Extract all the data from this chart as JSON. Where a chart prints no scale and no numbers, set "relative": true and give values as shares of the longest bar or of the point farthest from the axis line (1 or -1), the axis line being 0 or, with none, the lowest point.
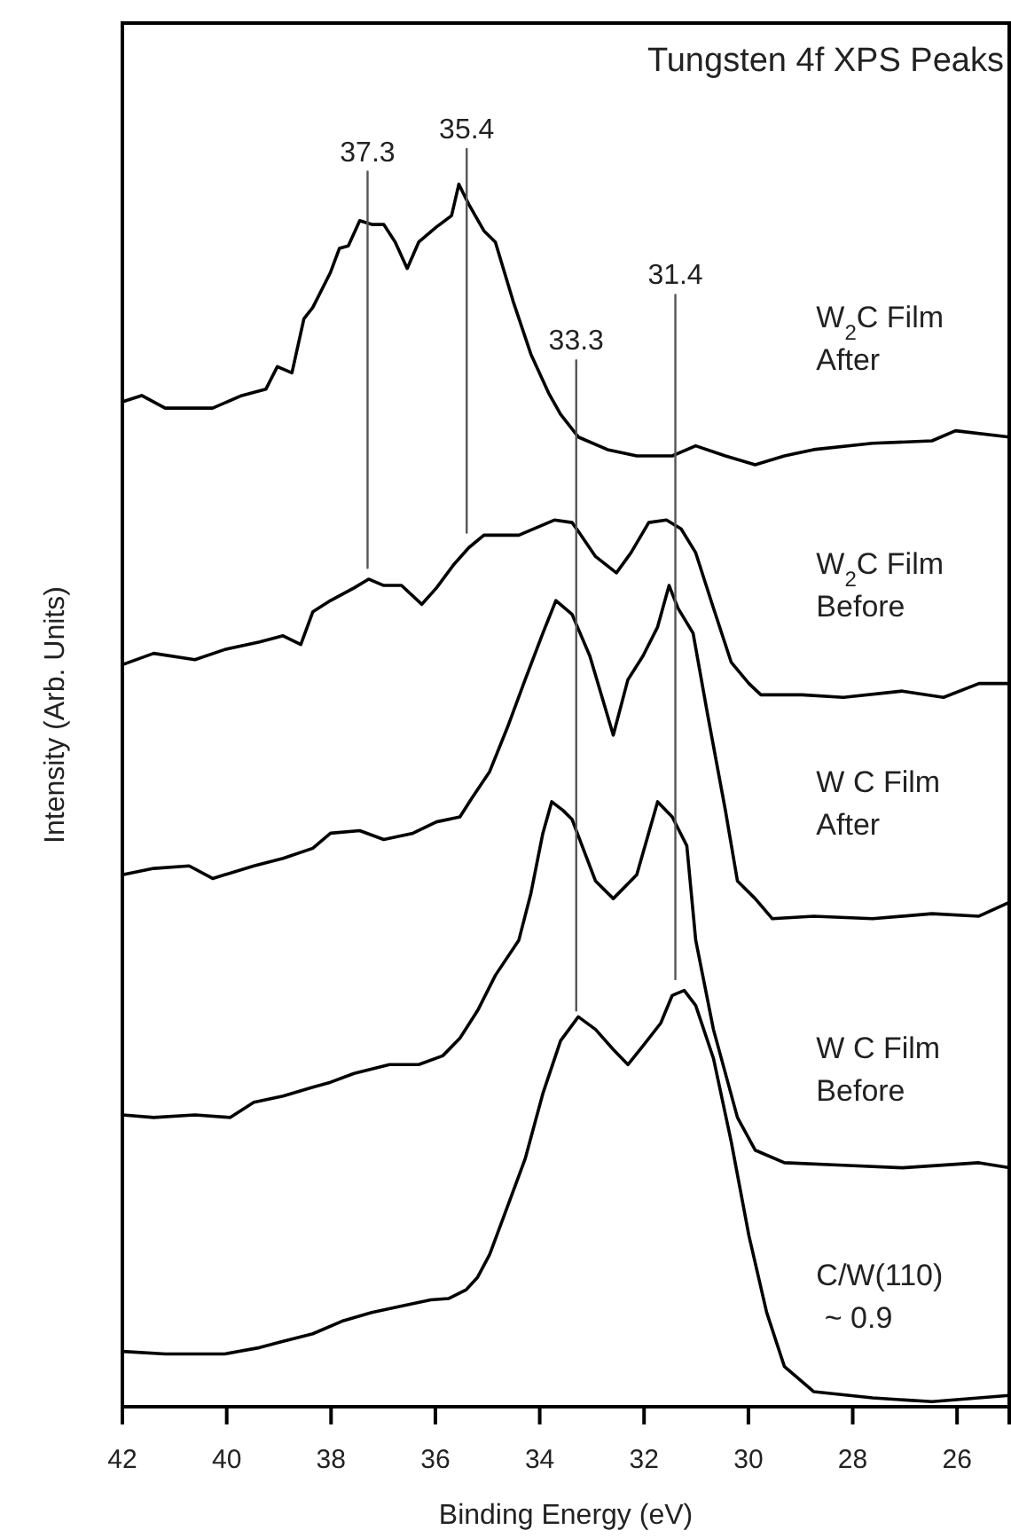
{
  "chart_data": {
    "type": "line",
    "title": "Tungsten 4f XPS Peaks",
    "xlabel": "Binding Energy (eV)",
    "ylabel": "Intensity (Arb. Units)",
    "relative": true,
    "xlim": [
      42,
      25
    ],
    "xticks": [
      42,
      40,
      38,
      36,
      34,
      32,
      30,
      28,
      26
    ],
    "series": [
      {
        "name": "W$_{2}$C Film\nAfter",
        "color": "#000000",
        "x": [
          42.0,
          41.63,
          41.18,
          40.27,
          39.71,
          39.25,
          39.03,
          38.75,
          38.52,
          38.35,
          38.01,
          37.84,
          37.67,
          37.45,
          37.22,
          36.99,
          36.77,
          36.54,
          36.32,
          35.98,
          35.69,
          35.55,
          35.36,
          35.07,
          34.85,
          34.51,
          34.17,
          33.83,
          33.6,
          33.26,
          32.7,
          32.14,
          31.46,
          31.01,
          30.44,
          29.87,
          29.31,
          28.75,
          27.62,
          26.48,
          26.03,
          25.0
        ],
        "values": [
          0.799,
          0.804,
          0.794,
          0.794,
          0.804,
          0.809,
          0.827,
          0.822,
          0.865,
          0.874,
          0.902,
          0.921,
          0.923,
          0.943,
          0.94,
          0.94,
          0.926,
          0.905,
          0.926,
          0.938,
          0.947,
          0.972,
          0.956,
          0.935,
          0.926,
          0.879,
          0.837,
          0.806,
          0.789,
          0.771,
          0.761,
          0.756,
          0.756,
          0.764,
          0.756,
          0.749,
          0.756,
          0.761,
          0.766,
          0.768,
          0.776,
          0.771
        ]
      },
      {
        "name": "W$_{2}$C Film\nBefore",
        "color": "#000000",
        "x": [
          42.0,
          41.4,
          40.61,
          40.04,
          39.37,
          38.92,
          38.58,
          38.35,
          38.01,
          37.56,
          37.28,
          36.99,
          36.65,
          36.26,
          35.98,
          35.64,
          35.36,
          35.07,
          34.4,
          33.72,
          33.38,
          33.26,
          32.93,
          32.53,
          32.25,
          31.91,
          31.57,
          31.29,
          31.01,
          30.67,
          30.33,
          29.99,
          29.76,
          28.97,
          28.18,
          27.05,
          26.26,
          25.58,
          25.0
        ],
        "values": [
          0.59,
          0.599,
          0.594,
          0.602,
          0.608,
          0.613,
          0.606,
          0.632,
          0.641,
          0.651,
          0.658,
          0.653,
          0.653,
          0.638,
          0.651,
          0.67,
          0.683,
          0.693,
          0.693,
          0.705,
          0.703,
          0.696,
          0.676,
          0.663,
          0.679,
          0.703,
          0.705,
          0.698,
          0.679,
          0.635,
          0.592,
          0.575,
          0.566,
          0.566,
          0.564,
          0.569,
          0.564,
          0.575,
          0.575
        ]
      },
      {
        "name": "W C Film\nAfter",
        "color": "#000000",
        "x": [
          42.0,
          41.4,
          40.72,
          40.27,
          39.48,
          38.92,
          38.35,
          38.01,
          37.45,
          36.99,
          36.43,
          35.98,
          35.53,
          35.3,
          34.96,
          34.62,
          34.28,
          33.94,
          33.69,
          33.38,
          33.04,
          32.59,
          32.31,
          32.02,
          31.74,
          31.52,
          31.35,
          31.06,
          30.78,
          30.44,
          30.21,
          29.87,
          29.54,
          28.75,
          27.62,
          26.48,
          25.58,
          25.0
        ],
        "values": [
          0.423,
          0.428,
          0.43,
          0.42,
          0.43,
          0.436,
          0.444,
          0.456,
          0.458,
          0.451,
          0.456,
          0.465,
          0.469,
          0.484,
          0.505,
          0.54,
          0.578,
          0.615,
          0.641,
          0.63,
          0.597,
          0.534,
          0.578,
          0.597,
          0.62,
          0.653,
          0.635,
          0.615,
          0.55,
          0.474,
          0.418,
          0.404,
          0.388,
          0.39,
          0.388,
          0.392,
          0.39,
          0.401
        ]
      },
      {
        "name": "W C Film\nBefore",
        "color": "#000000",
        "x": [
          42.0,
          41.4,
          40.61,
          39.93,
          39.48,
          38.92,
          38.35,
          38.01,
          37.56,
          36.88,
          36.32,
          35.86,
          35.53,
          35.19,
          34.85,
          34.4,
          34.17,
          33.94,
          33.77,
          33.55,
          33.38,
          32.93,
          32.59,
          32.14,
          31.74,
          31.46,
          31.18,
          31.01,
          30.67,
          30.21,
          29.87,
          29.31,
          28.18,
          27.05,
          25.58,
          25.0
        ],
        "values": [
          0.232,
          0.23,
          0.232,
          0.23,
          0.242,
          0.247,
          0.254,
          0.258,
          0.265,
          0.272,
          0.272,
          0.279,
          0.293,
          0.315,
          0.343,
          0.371,
          0.408,
          0.456,
          0.481,
          0.474,
          0.467,
          0.418,
          0.404,
          0.423,
          0.481,
          0.469,
          0.446,
          0.371,
          0.3,
          0.23,
          0.204,
          0.194,
          0.192,
          0.19,
          0.194,
          0.19
        ]
      },
      {
        "name": "C/W(110)\n ~ 0.9",
        "color": "#000000",
        "x": [
          42.0,
          41.18,
          40.04,
          39.37,
          38.92,
          38.35,
          37.79,
          37.22,
          36.65,
          36.09,
          35.75,
          35.41,
          35.19,
          34.96,
          34.62,
          34.28,
          33.94,
          33.6,
          33.26,
          32.93,
          32.59,
          32.31,
          32.02,
          31.68,
          31.46,
          31.23,
          31.01,
          30.67,
          30.33,
          29.99,
          29.65,
          29.31,
          28.75,
          27.62,
          26.48,
          25.58,
          25.0
        ],
        "values": [
          0.044,
          0.042,
          0.042,
          0.047,
          0.052,
          0.058,
          0.068,
          0.075,
          0.08,
          0.085,
          0.086,
          0.093,
          0.103,
          0.121,
          0.159,
          0.197,
          0.249,
          0.291,
          0.31,
          0.3,
          0.284,
          0.272,
          0.287,
          0.305,
          0.327,
          0.331,
          0.319,
          0.277,
          0.211,
          0.136,
          0.075,
          0.032,
          0.012,
          0.007,
          0.004,
          0.007,
          0.009
        ]
      },
      {
        "color": "#555555",
        "x": [
          37.3,
          37.3
        ],
        "values": [
          0.667,
          0.982
        ]
      },
      {
        "color": "#555555",
        "x": [
          35.4,
          35.4
        ],
        "values": [
          0.695,
          1.0
        ]
      },
      {
        "color": "#555555",
        "x": [
          33.3,
          33.3
        ],
        "values": [
          0.315,
          0.832
        ]
      },
      {
        "color": "#555555",
        "x": [
          31.4,
          31.4
        ],
        "values": [
          0.34,
          0.884
        ]
      }
    ],
    "annotations": [
      {
        "text": "37.3",
        "x": 37.3,
        "y": 0.982
      },
      {
        "text": "35.4",
        "x": 35.4,
        "y": 1.0
      },
      {
        "text": "33.3",
        "x": 33.3,
        "y": 0.832
      },
      {
        "text": "31.4",
        "x": 31.4,
        "y": 0.884
      }
    ]
  }
}
